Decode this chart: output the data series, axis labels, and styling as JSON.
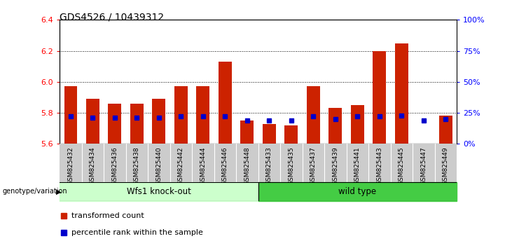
{
  "title": "GDS4526 / 10439312",
  "samples": [
    "GSM825432",
    "GSM825434",
    "GSM825436",
    "GSM825438",
    "GSM825440",
    "GSM825442",
    "GSM825444",
    "GSM825446",
    "GSM825448",
    "GSM825433",
    "GSM825435",
    "GSM825437",
    "GSM825439",
    "GSM825441",
    "GSM825443",
    "GSM825445",
    "GSM825447",
    "GSM825449"
  ],
  "transformed_count": [
    5.97,
    5.89,
    5.86,
    5.86,
    5.89,
    5.97,
    5.97,
    6.13,
    5.75,
    5.73,
    5.72,
    5.97,
    5.83,
    5.85,
    6.2,
    6.25,
    5.6,
    5.78
  ],
  "percentile_rank": [
    22,
    21,
    21,
    21,
    21,
    22,
    22,
    22,
    19,
    19,
    19,
    22,
    20,
    22,
    22,
    23,
    19,
    20
  ],
  "groups": [
    {
      "label": "Wfs1 knock-out",
      "start": 0,
      "end": 8
    },
    {
      "label": "wild type",
      "start": 9,
      "end": 17
    }
  ],
  "ylim_left": [
    5.6,
    6.4
  ],
  "ylim_right": [
    0,
    100
  ],
  "yticks_left": [
    5.6,
    5.8,
    6.0,
    6.2,
    6.4
  ],
  "yticks_right": [
    0,
    25,
    50,
    75,
    100
  ],
  "ytick_labels_right": [
    "0%",
    "25%",
    "50%",
    "75%",
    "100%"
  ],
  "bar_color": "#cc2200",
  "dot_color": "#0000cc",
  "background_color": "#ffffff",
  "group_bg_color_1": "#ccffcc",
  "group_bg_color_2": "#44cc44",
  "tick_bg_color": "#cccccc",
  "legend_items": [
    "transformed count",
    "percentile rank within the sample"
  ],
  "grid_yticks": [
    5.8,
    6.0,
    6.2
  ]
}
